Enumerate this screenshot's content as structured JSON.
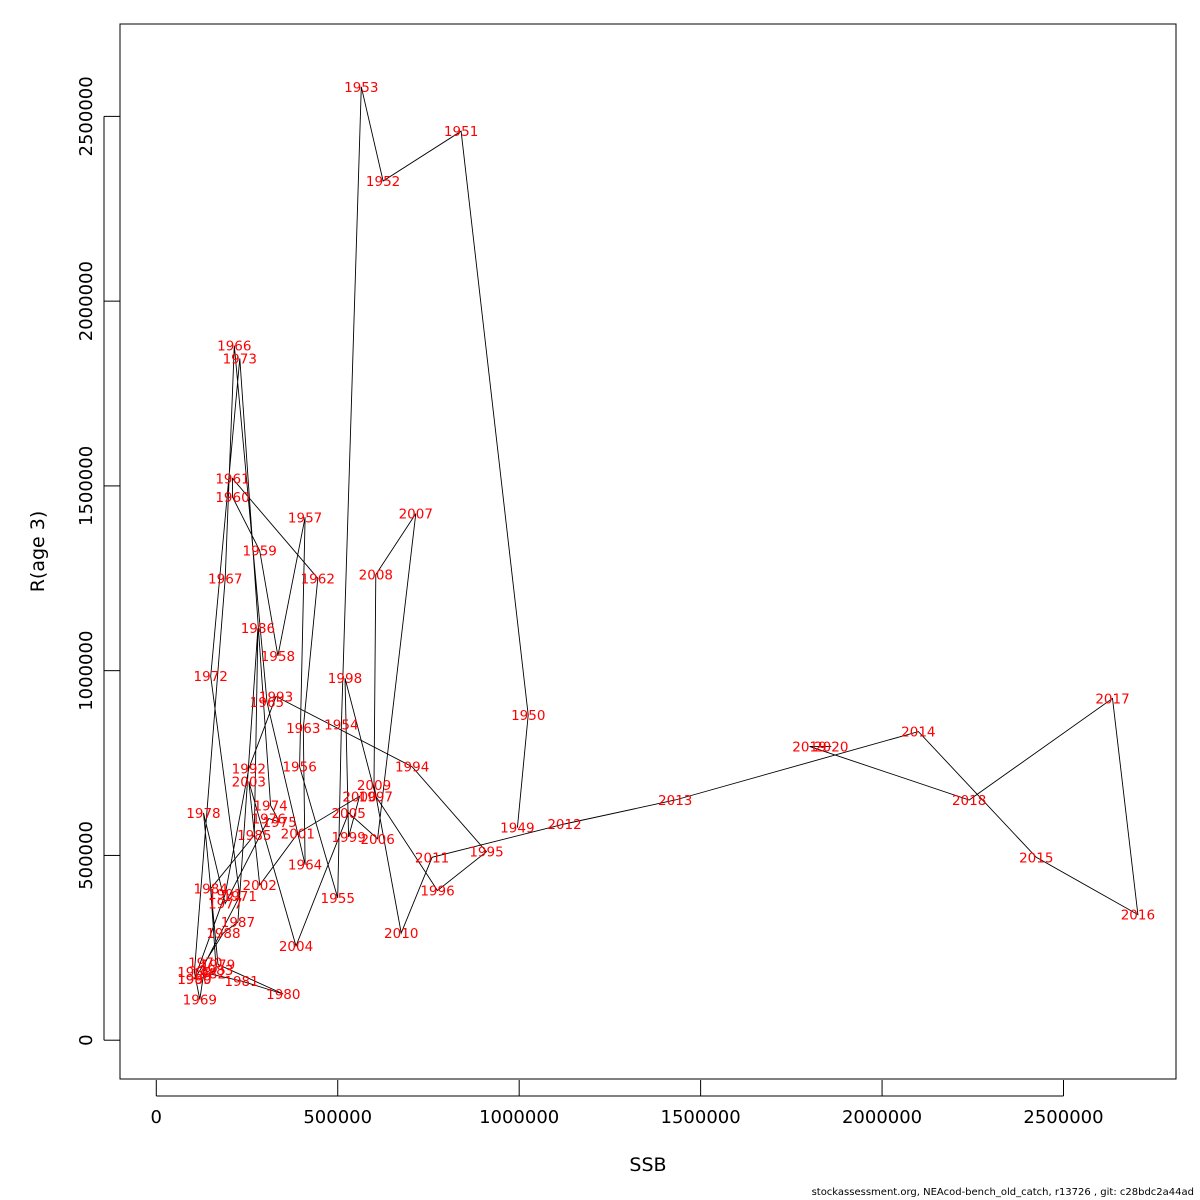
{
  "footer": "stockassessment.org, NEAcod-bench_old_catch, r13726 , git: c28bdc2a44ad",
  "chart_data": {
    "type": "line",
    "xlabel": "SSB",
    "ylabel": "R(age 3)",
    "xlim": [
      -100000,
      2810000
    ],
    "ylim": [
      -105000,
      2750000
    ],
    "xticks": [
      0,
      500000,
      1000000,
      1500000,
      2000000,
      2500000
    ],
    "xtick_labels": [
      "0",
      "500000",
      "1000000",
      "1500000",
      "2000000",
      "2500000"
    ],
    "yticks": [
      0,
      500000,
      1000000,
      1500000,
      2000000,
      2500000
    ],
    "ytick_labels": [
      "0",
      "500000",
      "1000000",
      "1500000",
      "2000000",
      "2500000"
    ],
    "grid": false,
    "line_color": "#000000",
    "label_color": "#ff0000",
    "points": [
      {
        "year": "1949",
        "ssb": 995000,
        "r": 575000
      },
      {
        "year": "1950",
        "ssb": 1025000,
        "r": 880000
      },
      {
        "year": "1951",
        "ssb": 840000,
        "r": 2460000
      },
      {
        "year": "1952",
        "ssb": 625000,
        "r": 2325000
      },
      {
        "year": "1953",
        "ssb": 565000,
        "r": 2580000
      },
      {
        "year": "1954",
        "ssb": 510000,
        "r": 855000
      },
      {
        "year": "1955",
        "ssb": 500000,
        "r": 385000
      },
      {
        "year": "1956",
        "ssb": 395000,
        "r": 740000
      },
      {
        "year": "1957",
        "ssb": 410000,
        "r": 1415000
      },
      {
        "year": "1958",
        "ssb": 335000,
        "r": 1040000
      },
      {
        "year": "1959",
        "ssb": 285000,
        "r": 1325000
      },
      {
        "year": "1960",
        "ssb": 210000,
        "r": 1470000
      },
      {
        "year": "1961",
        "ssb": 210000,
        "r": 1520000
      },
      {
        "year": "1962",
        "ssb": 445000,
        "r": 1250000
      },
      {
        "year": "1963",
        "ssb": 405000,
        "r": 845000
      },
      {
        "year": "1964",
        "ssb": 410000,
        "r": 475000
      },
      {
        "year": "1965",
        "ssb": 305000,
        "r": 915000
      },
      {
        "year": "1966",
        "ssb": 215000,
        "r": 1880000
      },
      {
        "year": "1967",
        "ssb": 190000,
        "r": 1250000
      },
      {
        "year": "1968",
        "ssb": 105000,
        "r": 185000
      },
      {
        "year": "1969",
        "ssb": 120000,
        "r": 110000
      },
      {
        "year": "1970",
        "ssb": 135000,
        "r": 210000
      },
      {
        "year": "1971",
        "ssb": 230000,
        "r": 390000
      },
      {
        "year": "1972",
        "ssb": 150000,
        "r": 985000
      },
      {
        "year": "1973",
        "ssb": 230000,
        "r": 1845000
      },
      {
        "year": "1974",
        "ssb": 315000,
        "r": 635000
      },
      {
        "year": "1975",
        "ssb": 340000,
        "r": 590000
      },
      {
        "year": "1976",
        "ssb": 310000,
        "r": 600000
      },
      {
        "year": "1977",
        "ssb": 190000,
        "r": 370000
      },
      {
        "year": "1978",
        "ssb": 130000,
        "r": 615000
      },
      {
        "year": "1979",
        "ssb": 170000,
        "r": 205000
      },
      {
        "year": "1980",
        "ssb": 350000,
        "r": 125000
      },
      {
        "year": "1981",
        "ssb": 235000,
        "r": 160000
      },
      {
        "year": "1982",
        "ssb": 145000,
        "r": 180000
      },
      {
        "year": "1983",
        "ssb": 165000,
        "r": 190000
      },
      {
        "year": "1984",
        "ssb": 150000,
        "r": 410000
      },
      {
        "year": "1985",
        "ssb": 270000,
        "r": 555000
      },
      {
        "year": "1986",
        "ssb": 280000,
        "r": 1115000
      },
      {
        "year": "1987",
        "ssb": 225000,
        "r": 320000
      },
      {
        "year": "1988",
        "ssb": 185000,
        "r": 290000
      },
      {
        "year": "1989",
        "ssb": 105000,
        "r": 165000
      },
      {
        "year": "1990",
        "ssb": 105000,
        "r": 165000
      },
      {
        "year": "1991",
        "ssb": 190000,
        "r": 395000
      },
      {
        "year": "1992",
        "ssb": 255000,
        "r": 735000
      },
      {
        "year": "1993",
        "ssb": 330000,
        "r": 930000
      },
      {
        "year": "1994",
        "ssb": 705000,
        "r": 740000
      },
      {
        "year": "1995",
        "ssb": 910000,
        "r": 510000
      },
      {
        "year": "1996",
        "ssb": 775000,
        "r": 405000
      },
      {
        "year": "1997",
        "ssb": 605000,
        "r": 660000
      },
      {
        "year": "1998",
        "ssb": 520000,
        "r": 980000
      },
      {
        "year": "1999",
        "ssb": 530000,
        "r": 550000
      },
      {
        "year": "2000",
        "ssb": 560000,
        "r": 660000
      },
      {
        "year": "2001",
        "ssb": 390000,
        "r": 560000
      },
      {
        "year": "2002",
        "ssb": 285000,
        "r": 420000
      },
      {
        "year": "2003",
        "ssb": 255000,
        "r": 700000
      },
      {
        "year": "2004",
        "ssb": 385000,
        "r": 255000
      },
      {
        "year": "2005",
        "ssb": 530000,
        "r": 615000
      },
      {
        "year": "2006",
        "ssb": 610000,
        "r": 545000
      },
      {
        "year": "2007",
        "ssb": 715000,
        "r": 1425000
      },
      {
        "year": "2008",
        "ssb": 605000,
        "r": 1260000
      },
      {
        "year": "2009",
        "ssb": 600000,
        "r": 690000
      },
      {
        "year": "2010",
        "ssb": 675000,
        "r": 290000
      },
      {
        "year": "2011",
        "ssb": 760000,
        "r": 495000
      },
      {
        "year": "2012",
        "ssb": 1125000,
        "r": 585000
      },
      {
        "year": "2013",
        "ssb": 1430000,
        "r": 650000
      },
      {
        "year": "2014",
        "ssb": 2100000,
        "r": 835000
      },
      {
        "year": "2015",
        "ssb": 2425000,
        "r": 495000
      },
      {
        "year": "2016",
        "ssb": 2705000,
        "r": 340000
      },
      {
        "year": "2017",
        "ssb": 2635000,
        "r": 925000
      },
      {
        "year": "2018",
        "ssb": 2240000,
        "r": 650000
      },
      {
        "year": "2019",
        "ssb": 1800000,
        "r": 795000
      },
      {
        "year": "2020",
        "ssb": 1860000,
        "r": 795000
      }
    ]
  }
}
